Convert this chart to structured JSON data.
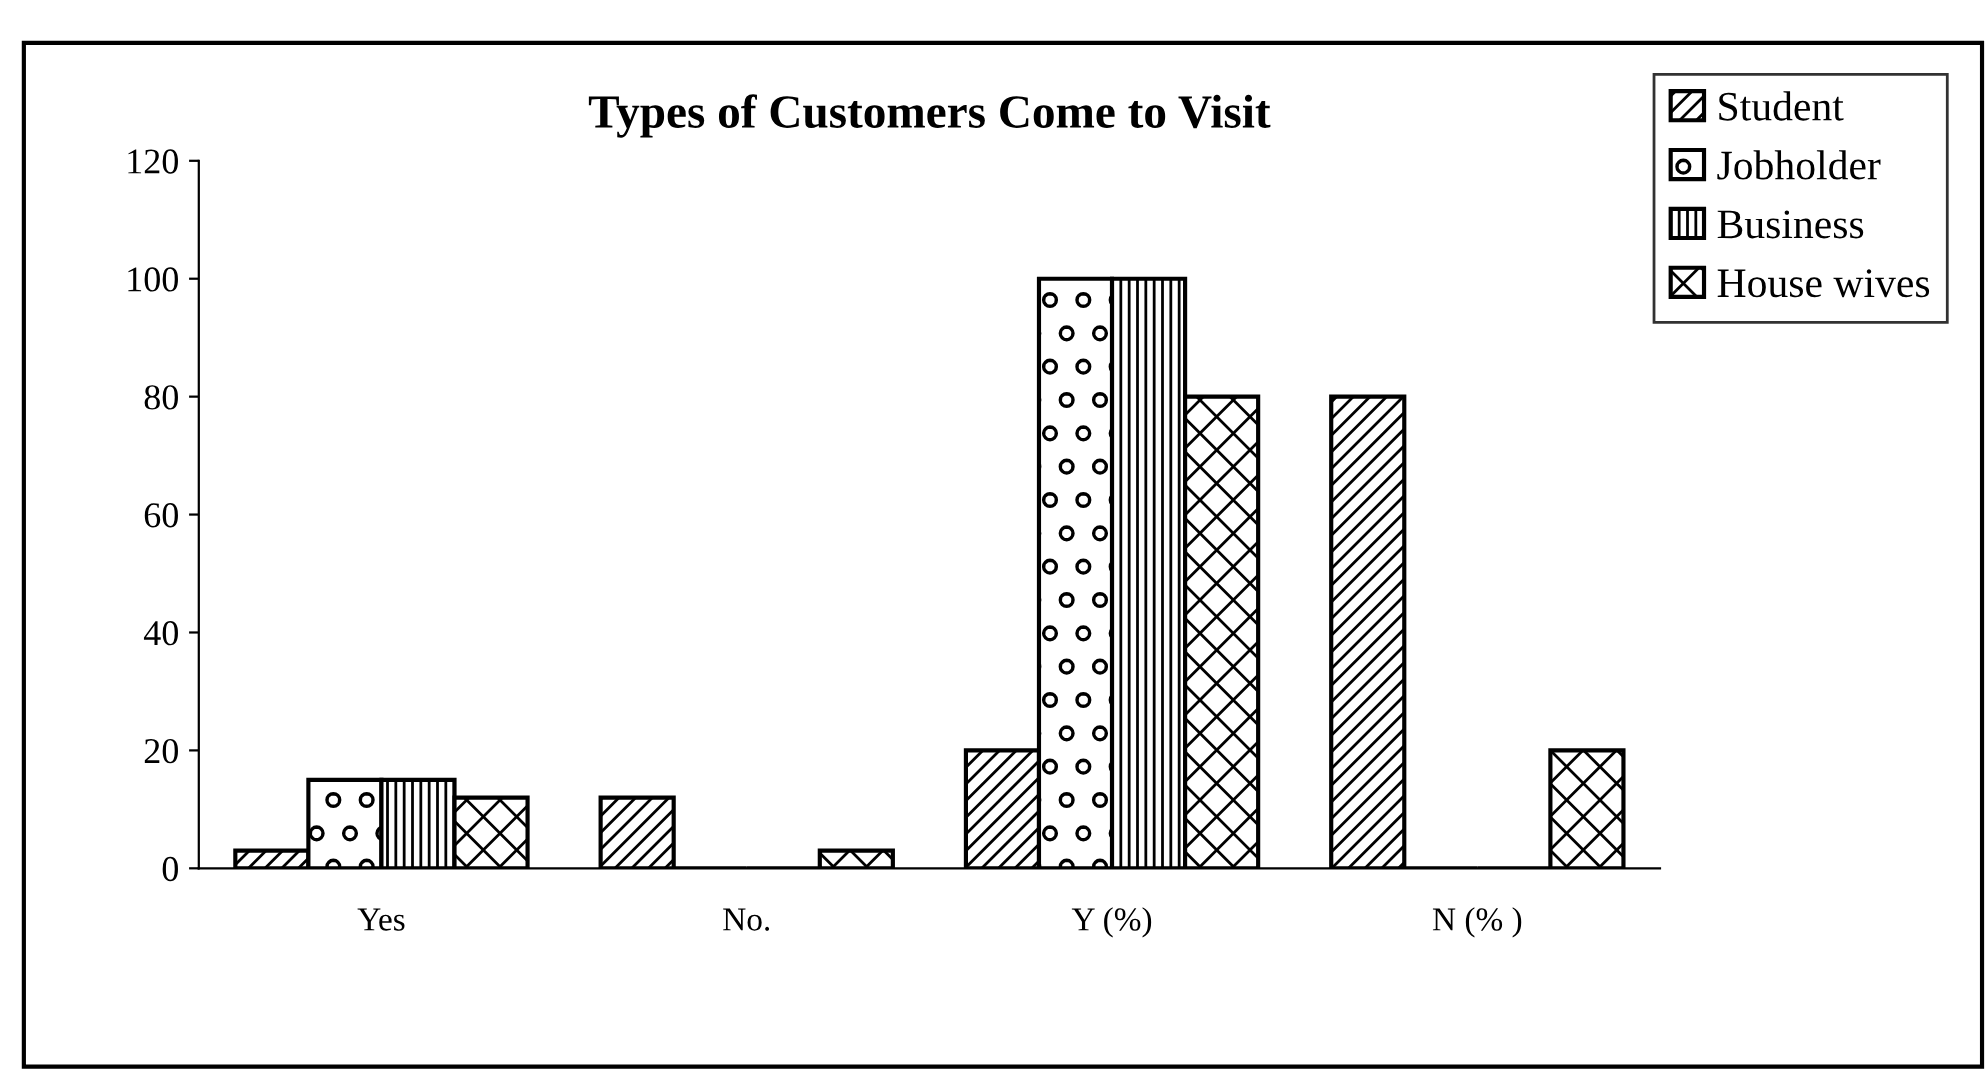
{
  "chart_data": {
    "type": "bar",
    "title": "Types of Customers Come to Visit",
    "categories": [
      "Yes",
      "No.",
      "Y (%)",
      "N (% )"
    ],
    "series": [
      {
        "name": "Student",
        "color": "#000000",
        "values": [
          3,
          12,
          20,
          80
        ]
      },
      {
        "name": "Jobholder",
        "color": "#000000",
        "values": [
          15,
          0,
          100,
          0
        ]
      },
      {
        "name": "Business",
        "color": "#000000",
        "values": [
          15,
          0,
          100,
          0
        ]
      },
      {
        "name": "House wives",
        "color": "#000000",
        "values": [
          12,
          3,
          80,
          20
        ]
      }
    ],
    "ylim": [
      0,
      120
    ],
    "yticks": [
      0,
      20,
      40,
      60,
      80,
      100,
      120
    ],
    "grid": false,
    "legend": "top right"
  }
}
